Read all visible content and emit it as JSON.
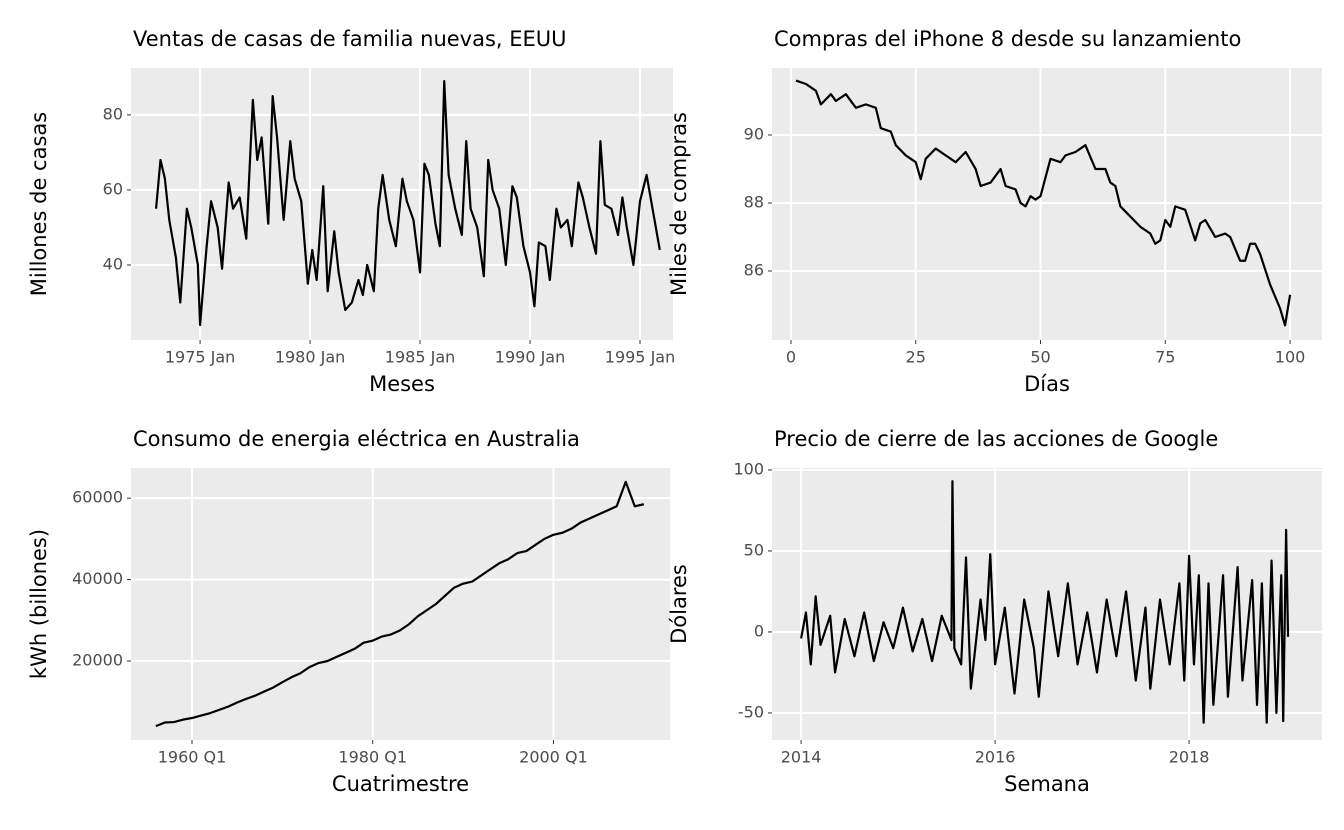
{
  "chart_data": [
    {
      "type": "line",
      "title": "Ventas de casas de familia nuevas, EEUU",
      "x_label": "Meses",
      "y_label": "Millones de casas",
      "color": "#000000",
      "grid": true,
      "x": [
        1973.0,
        1973.2,
        1973.4,
        1973.6,
        1973.9,
        1974.1,
        1974.4,
        1974.6,
        1974.9,
        1975.0,
        1975.3,
        1975.5,
        1975.8,
        1976.0,
        1976.3,
        1976.5,
        1976.8,
        1977.1,
        1977.4,
        1977.6,
        1977.8,
        1978.1,
        1978.3,
        1978.5,
        1978.8,
        1979.1,
        1979.3,
        1979.6,
        1979.9,
        1980.1,
        1980.3,
        1980.6,
        1980.8,
        1981.1,
        1981.3,
        1981.6,
        1981.9,
        1982.2,
        1982.4,
        1982.6,
        1982.9,
        1983.1,
        1983.3,
        1983.6,
        1983.9,
        1984.2,
        1984.4,
        1984.7,
        1985.0,
        1985.2,
        1985.4,
        1985.7,
        1985.9,
        1986.1,
        1986.3,
        1986.6,
        1986.9,
        1987.1,
        1987.3,
        1987.6,
        1987.9,
        1988.1,
        1988.3,
        1988.6,
        1988.9,
        1989.2,
        1989.4,
        1989.7,
        1990.0,
        1990.2,
        1990.4,
        1990.7,
        1990.9,
        1991.2,
        1991.4,
        1991.7,
        1991.9,
        1992.2,
        1992.4,
        1992.7,
        1993.0,
        1993.2,
        1993.4,
        1993.7,
        1994.0,
        1994.2,
        1994.4,
        1994.7,
        1995.0,
        1995.3,
        1995.6,
        1995.9
      ],
      "values": [
        55,
        68,
        63,
        52,
        42,
        30,
        55,
        50,
        40,
        24,
        45,
        57,
        50,
        39,
        62,
        55,
        58,
        47,
        84,
        68,
        74,
        51,
        85,
        74,
        52,
        73,
        63,
        57,
        35,
        44,
        36,
        61,
        33,
        49,
        38,
        28,
        30,
        36,
        32,
        40,
        33,
        55,
        64,
        52,
        45,
        63,
        57,
        52,
        38,
        67,
        64,
        51,
        45,
        89,
        64,
        55,
        48,
        73,
        55,
        50,
        37,
        68,
        60,
        55,
        40,
        61,
        58,
        45,
        38,
        29,
        46,
        45,
        36,
        55,
        50,
        52,
        45,
        62,
        58,
        50,
        43,
        73,
        56,
        55,
        48,
        58,
        50,
        40,
        57,
        64,
        54,
        44
      ],
      "xlim": [
        1971.86,
        1996.5
      ],
      "ylim": [
        20,
        92.5
      ],
      "xticks": [
        {
          "value": 1975,
          "label": "1975 Jan"
        },
        {
          "value": 1980,
          "label": "1980 Jan"
        },
        {
          "value": 1985,
          "label": "1985 Jan"
        },
        {
          "value": 1990,
          "label": "1990 Jan"
        },
        {
          "value": 1995,
          "label": "1995 Jan"
        }
      ],
      "yticks": [
        40,
        60,
        80
      ]
    },
    {
      "type": "line",
      "title": "Compras del iPhone 8 desde su lanzamiento",
      "x_label": "Días",
      "y_label": "Miles de compras",
      "color": "#000000",
      "grid": true,
      "x": [
        1,
        3,
        5,
        6,
        8,
        9,
        11,
        13,
        15,
        17,
        18,
        20,
        21,
        23,
        25,
        26,
        27,
        29,
        31,
        33,
        35,
        37,
        38,
        40,
        42,
        43,
        45,
        46,
        47,
        48,
        49,
        50,
        52,
        54,
        55,
        57,
        59,
        61,
        63,
        64,
        65,
        66,
        68,
        70,
        72,
        73,
        74,
        75,
        76,
        77,
        79,
        81,
        82,
        83,
        85,
        87,
        88,
        90,
        91,
        92,
        93,
        94,
        96,
        98,
        99,
        100
      ],
      "values": [
        91.6,
        91.5,
        91.3,
        90.9,
        91.2,
        91.0,
        91.2,
        90.8,
        90.9,
        90.8,
        90.2,
        90.1,
        89.7,
        89.4,
        89.2,
        88.7,
        89.3,
        89.6,
        89.4,
        89.2,
        89.5,
        89.0,
        88.5,
        88.6,
        89.0,
        88.5,
        88.4,
        88.0,
        87.9,
        88.2,
        88.1,
        88.2,
        89.3,
        89.2,
        89.4,
        89.5,
        89.7,
        89.0,
        89.0,
        88.6,
        88.5,
        87.9,
        87.6,
        87.3,
        87.1,
        86.8,
        86.9,
        87.5,
        87.3,
        87.9,
        87.8,
        86.9,
        87.4,
        87.5,
        87.0,
        87.1,
        87.0,
        86.3,
        86.3,
        86.8,
        86.8,
        86.5,
        85.6,
        84.9,
        84.4,
        85.3
      ],
      "xlim": [
        -3.8,
        106.4
      ],
      "ylim": [
        83.97,
        91.97
      ],
      "xticks": [
        0,
        25,
        50,
        75,
        100
      ],
      "yticks": [
        86,
        88,
        90
      ]
    },
    {
      "type": "line",
      "title": "Consumo de energia eléctrica en Australia",
      "x_label": "Cuatrimestre",
      "y_label": "kWh (billones)",
      "color": "#000000",
      "grid": true,
      "x": [
        1956,
        1957,
        1958,
        1959,
        1960,
        1961,
        1962,
        1963,
        1964,
        1965,
        1966,
        1967,
        1968,
        1969,
        1970,
        1971,
        1972,
        1973,
        1974,
        1975,
        1976,
        1977,
        1978,
        1979,
        1980,
        1981,
        1982,
        1983,
        1984,
        1985,
        1986,
        1987,
        1988,
        1989,
        1990,
        1991,
        1992,
        1993,
        1994,
        1995,
        1996,
        1997,
        1998,
        1999,
        2000,
        2001,
        2002,
        2003,
        2004,
        2005,
        2006,
        2007,
        2008,
        2009,
        2010
      ],
      "values": [
        4000,
        4900,
        5000,
        5600,
        6000,
        6600,
        7200,
        8000,
        8800,
        9800,
        10700,
        11500,
        12500,
        13500,
        14800,
        16000,
        17000,
        18500,
        19500,
        20000,
        21000,
        22000,
        23000,
        24500,
        25000,
        26000,
        26500,
        27500,
        29000,
        31000,
        32500,
        34000,
        36000,
        38000,
        39000,
        39500,
        41000,
        42500,
        44000,
        45000,
        46500,
        47000,
        48500,
        50000,
        51000,
        51500,
        52500,
        54000,
        55000,
        56000,
        57000,
        58000,
        64000,
        58000,
        58500
      ],
      "xlim": [
        1953.25,
        2012.9
      ],
      "ylim": [
        600,
        67400
      ],
      "xticks": [
        {
          "value": 1960,
          "label": "1960 Q1"
        },
        {
          "value": 1980,
          "label": "1980 Q1"
        },
        {
          "value": 2000,
          "label": "2000 Q1"
        }
      ],
      "yticks": [
        20000,
        40000,
        60000
      ]
    },
    {
      "type": "line",
      "title": "Precio de cierre de las acciones de Google",
      "x_label": "Semana",
      "y_label": "Dólares",
      "color": "#000000",
      "grid": true,
      "x": [
        2014.0,
        2014.05,
        2014.1,
        2014.15,
        2014.2,
        2014.3,
        2014.35,
        2014.45,
        2014.55,
        2014.65,
        2014.75,
        2014.85,
        2014.95,
        2015.05,
        2015.15,
        2015.25,
        2015.35,
        2015.45,
        2015.55,
        2015.56,
        2015.58,
        2015.65,
        2015.7,
        2015.75,
        2015.85,
        2015.9,
        2015.95,
        2016.0,
        2016.1,
        2016.2,
        2016.3,
        2016.4,
        2016.45,
        2016.55,
        2016.65,
        2016.75,
        2016.85,
        2016.95,
        2017.05,
        2017.15,
        2017.25,
        2017.35,
        2017.45,
        2017.55,
        2017.6,
        2017.7,
        2017.8,
        2017.9,
        2017.95,
        2018.0,
        2018.05,
        2018.1,
        2018.15,
        2018.2,
        2018.25,
        2018.35,
        2018.4,
        2018.5,
        2018.55,
        2018.65,
        2018.7,
        2018.75,
        2018.8,
        2018.85,
        2018.9,
        2018.95,
        2018.97,
        2019.0,
        2019.02
      ],
      "values": [
        -4,
        12,
        -20,
        22,
        -8,
        10,
        -25,
        8,
        -15,
        12,
        -18,
        6,
        -10,
        15,
        -12,
        8,
        -18,
        10,
        -5,
        93,
        -10,
        -20,
        46,
        -35,
        20,
        -5,
        48,
        -20,
        15,
        -38,
        20,
        -10,
        -40,
        25,
        -15,
        30,
        -20,
        12,
        -25,
        20,
        -15,
        25,
        -30,
        15,
        -35,
        20,
        -20,
        30,
        -30,
        47,
        -20,
        35,
        -56,
        30,
        -45,
        35,
        -40,
        40,
        -30,
        32,
        -45,
        30,
        -56,
        44,
        -50,
        35,
        -55,
        63,
        -3
      ],
      "xlim": [
        2013.7,
        2019.37
      ],
      "ylim": [
        -66.7,
        101.2
      ],
      "xticks": [
        2014,
        2016,
        2018
      ],
      "yticks": [
        -50,
        0,
        50,
        100
      ]
    }
  ]
}
